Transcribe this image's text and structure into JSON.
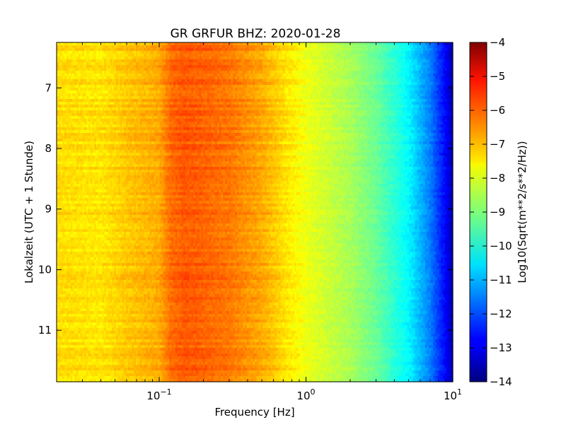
{
  "chart_data": {
    "type": "heatmap",
    "title": "GR GRFUR BHZ: 2020-01-28",
    "xlabel": "Frequency [Hz]",
    "ylabel": "Lokalzeit (UTC + 1 Stunde)",
    "xscale": "log",
    "xlim": [
      0.02,
      10
    ],
    "ylim": [
      11.85,
      6.25
    ],
    "y_inverted": true,
    "x_ticks": [
      {
        "value": 0.1,
        "base": "10",
        "exp": "−1"
      },
      {
        "value": 1,
        "base": "10",
        "exp": "0"
      },
      {
        "value": 10,
        "base": "10",
        "exp": "1"
      }
    ],
    "y_ticks": [
      "7",
      "8",
      "9",
      "10",
      "11"
    ],
    "colorbar": {
      "label": "Log10(Sqrt(m**2/s**2/Hz))",
      "range": [
        -14,
        -4
      ],
      "ticks": [
        "−4",
        "−5",
        "−6",
        "−7",
        "−8",
        "−9",
        "−10",
        "−11",
        "−12",
        "−13",
        "−14"
      ],
      "colormap": "jet"
    },
    "frequency_profile": [
      {
        "f": 0.02,
        "v": -7.4
      },
      {
        "f": 0.04,
        "v": -7.5
      },
      {
        "f": 0.06,
        "v": -7.2
      },
      {
        "f": 0.1,
        "v": -6.9
      },
      {
        "f": 0.12,
        "v": -6.3
      },
      {
        "f": 0.15,
        "v": -6.1
      },
      {
        "f": 0.2,
        "v": -6.2
      },
      {
        "f": 0.3,
        "v": -6.4
      },
      {
        "f": 0.5,
        "v": -6.9
      },
      {
        "f": 0.7,
        "v": -7.4
      },
      {
        "f": 1.0,
        "v": -7.9
      },
      {
        "f": 2.0,
        "v": -8.6
      },
      {
        "f": 3.0,
        "v": -9.2
      },
      {
        "f": 5.0,
        "v": -10.3
      },
      {
        "f": 7.0,
        "v": -11.5
      },
      {
        "f": 9.0,
        "v": -12.8
      },
      {
        "f": 10.0,
        "v": -13.6
      }
    ]
  }
}
